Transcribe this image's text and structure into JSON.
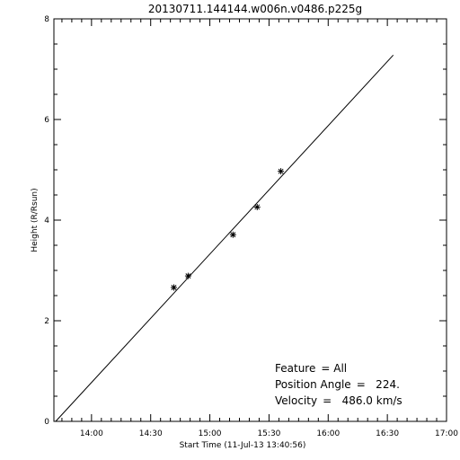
{
  "chart_data": {
    "type": "scatter",
    "title": "20130711.144144.w006n.v0486.p225g",
    "xlabel": "Start Time (11-Jul-13 13:40:56)",
    "ylabel": "Height (R/Rsun)",
    "x_unit": "time of day",
    "xlim": [
      "13:40:56",
      "17:00:00"
    ],
    "ylim": [
      0,
      8
    ],
    "x_ticks": [
      "14:00",
      "14:30",
      "15:00",
      "15:30",
      "16:00",
      "16:30",
      "17:00"
    ],
    "y_ticks": [
      "0",
      "2",
      "4",
      "6",
      "8"
    ],
    "grid": false,
    "series": [
      {
        "marker": "asterisk",
        "points": [
          {
            "x": "14:41:44",
            "y": 2.66
          },
          {
            "x": "14:49:00",
            "y": 2.89
          },
          {
            "x": "15:11:44",
            "y": 3.71
          },
          {
            "x": "15:24:00",
            "y": 4.26
          },
          {
            "x": "15:36:00",
            "y": 4.97
          }
        ]
      }
    ],
    "fit_line": {
      "style": "solid",
      "points": [
        {
          "x": "13:41:50",
          "y": 0.0
        },
        {
          "x": "16:33:00",
          "y": 7.28
        }
      ]
    },
    "annotations": [
      {
        "label": "Feature",
        "value": "= All"
      },
      {
        "label": "Position Angle",
        "value": "=   224."
      },
      {
        "label": "Velocity",
        "value": "=   486.0 km/s"
      }
    ]
  }
}
